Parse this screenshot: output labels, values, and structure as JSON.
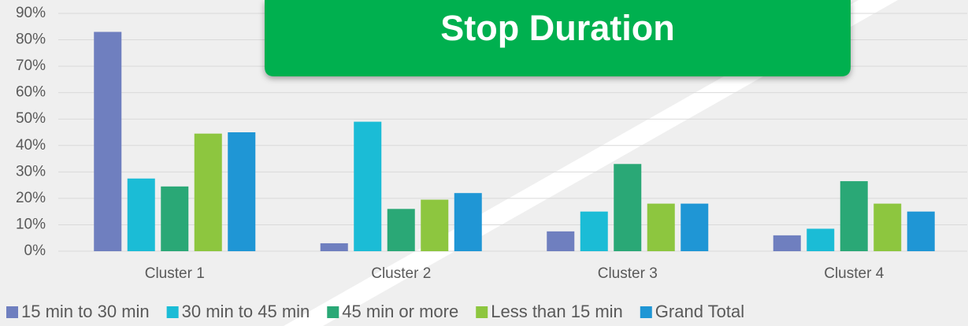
{
  "chart_data": {
    "type": "bar",
    "title": "Stop Duration",
    "categories": [
      "Cluster 1",
      "Cluster 2",
      "Cluster 3",
      "Cluster 4"
    ],
    "series": [
      {
        "name": "15 min to 30 min",
        "color": "#6f7fbf",
        "values": [
          83,
          3,
          7.5,
          6
        ]
      },
      {
        "name": "30 min to 45 min",
        "color": "#1bbcd6",
        "values": [
          27.5,
          49,
          15,
          8.5
        ]
      },
      {
        "name": "45 min or more",
        "color": "#2aa876",
        "values": [
          24.5,
          16,
          33,
          26.5
        ]
      },
      {
        "name": "Less than 15 min",
        "color": "#8dc63f",
        "values": [
          44.5,
          19.5,
          18,
          18
        ]
      },
      {
        "name": "Grand Total",
        "color": "#1f96d5",
        "values": [
          45,
          22,
          18,
          15
        ]
      }
    ],
    "ylim": [
      0,
      90
    ],
    "yticks": [
      {
        "value": 0,
        "label": "0%"
      },
      {
        "value": 10,
        "label": "10%"
      },
      {
        "value": 20,
        "label": "20%"
      },
      {
        "value": 30,
        "label": "30%"
      },
      {
        "value": 40,
        "label": "40%"
      },
      {
        "value": 50,
        "label": "50%"
      },
      {
        "value": 60,
        "label": "60%"
      },
      {
        "value": 70,
        "label": "70%"
      },
      {
        "value": 80,
        "label": "80%"
      },
      {
        "value": 90,
        "label": "90%"
      }
    ],
    "grid": true,
    "legend": "bottom"
  }
}
